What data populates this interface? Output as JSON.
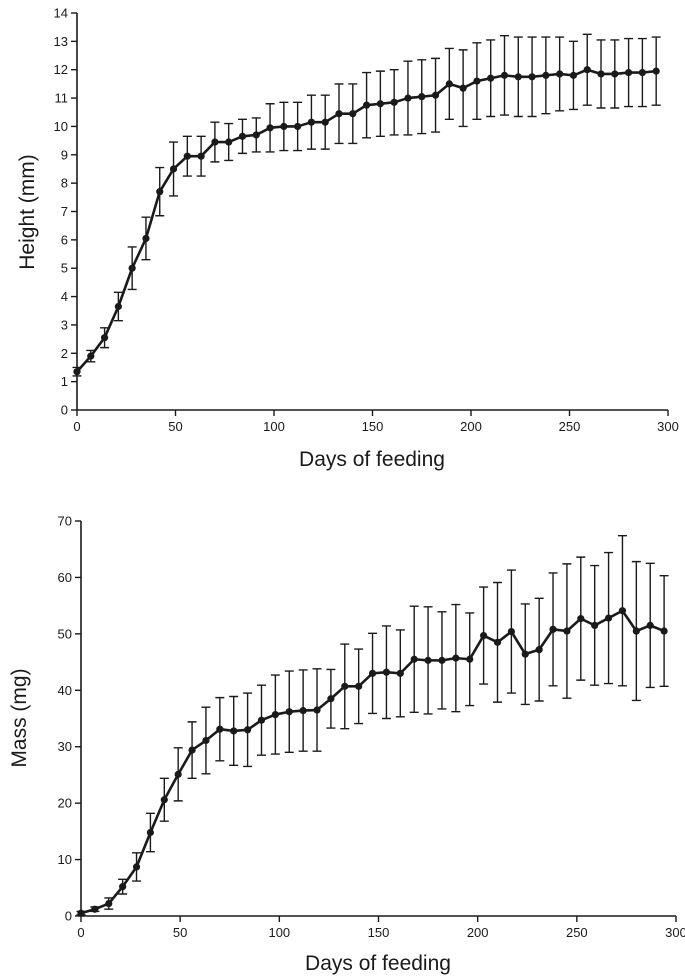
{
  "chart_data": [
    {
      "type": "line",
      "xlabel": "Days of feeding",
      "ylabel": "Height (mm)",
      "xlim": [
        0,
        300
      ],
      "ylim": [
        0,
        14
      ],
      "xticks": [
        0,
        50,
        100,
        150,
        200,
        250,
        300
      ],
      "yticks": [
        0,
        1,
        2,
        3,
        4,
        5,
        6,
        7,
        8,
        9,
        10,
        11,
        12,
        13,
        14
      ],
      "grid": false,
      "error_bars": true,
      "series": [
        {
          "x": [
            0,
            7,
            14,
            21,
            28,
            35,
            42,
            49,
            56,
            63,
            70,
            77,
            84,
            91,
            98,
            105,
            112,
            119,
            126,
            133,
            140,
            147,
            154,
            161,
            168,
            175,
            182,
            189,
            196,
            203,
            210,
            217,
            224,
            231,
            238,
            245,
            252,
            259,
            266,
            273,
            280,
            287,
            294
          ],
          "y": [
            1.35,
            1.9,
            2.55,
            3.65,
            5.0,
            6.05,
            7.7,
            8.5,
            8.95,
            8.95,
            9.45,
            9.45,
            9.65,
            9.7,
            9.95,
            10.0,
            10.0,
            10.15,
            10.15,
            10.45,
            10.45,
            10.75,
            10.8,
            10.85,
            11.0,
            11.05,
            11.1,
            11.5,
            11.35,
            11.6,
            11.7,
            11.8,
            11.75,
            11.75,
            11.8,
            11.85,
            11.8,
            12.0,
            11.85,
            11.85,
            11.9,
            11.9,
            11.95
          ],
          "err": [
            0.15,
            0.2,
            0.35,
            0.5,
            0.75,
            0.75,
            0.85,
            0.95,
            0.7,
            0.7,
            0.7,
            0.65,
            0.6,
            0.6,
            0.85,
            0.85,
            0.85,
            0.95,
            0.95,
            1.05,
            1.05,
            1.15,
            1.15,
            1.15,
            1.3,
            1.3,
            1.3,
            1.25,
            1.35,
            1.35,
            1.35,
            1.4,
            1.4,
            1.4,
            1.35,
            1.3,
            1.2,
            1.25,
            1.2,
            1.2,
            1.2,
            1.2,
            1.2
          ]
        }
      ]
    },
    {
      "type": "line",
      "xlabel": "Days of feeding",
      "ylabel": "Mass (mg)",
      "xlim": [
        0,
        300
      ],
      "ylim": [
        0,
        70
      ],
      "xticks": [
        0,
        50,
        100,
        150,
        200,
        250,
        300
      ],
      "yticks": [
        0,
        10,
        20,
        30,
        40,
        50,
        60,
        70
      ],
      "grid": false,
      "error_bars": true,
      "series": [
        {
          "x": [
            0,
            7,
            14,
            21,
            28,
            35,
            42,
            49,
            56,
            63,
            70,
            77,
            84,
            91,
            98,
            105,
            112,
            119,
            126,
            133,
            140,
            147,
            154,
            161,
            168,
            175,
            182,
            189,
            196,
            203,
            210,
            217,
            224,
            231,
            238,
            245,
            252,
            259,
            266,
            273,
            280,
            287,
            294
          ],
          "y": [
            0.5,
            1.2,
            2.2,
            5.2,
            8.7,
            14.8,
            20.6,
            25.1,
            29.4,
            31.1,
            33.1,
            32.8,
            33.0,
            34.7,
            35.7,
            36.2,
            36.4,
            36.5,
            38.5,
            40.7,
            40.7,
            43.0,
            43.2,
            43.0,
            45.5,
            45.3,
            45.3,
            45.7,
            45.5,
            49.7,
            48.5,
            50.4,
            46.4,
            47.2,
            50.8,
            50.5,
            52.7,
            51.5,
            52.8,
            54.1,
            50.5,
            51.5,
            50.5
          ],
          "err": [
            0.3,
            0.4,
            1.0,
            1.3,
            2.5,
            3.4,
            3.8,
            4.7,
            5.0,
            5.9,
            5.6,
            6.1,
            6.5,
            6.2,
            7.0,
            7.2,
            7.2,
            7.3,
            5.2,
            7.5,
            6.6,
            7.1,
            8.2,
            7.7,
            9.4,
            9.5,
            8.6,
            9.5,
            8.2,
            8.6,
            10.6,
            10.9,
            8.9,
            9.1,
            10.0,
            11.9,
            10.9,
            10.6,
            11.6,
            13.3,
            12.3,
            11.0,
            9.8
          ]
        }
      ]
    }
  ],
  "charts": [
    {
      "xlabel": "Days of feeding",
      "ylabel": "Height (mm)",
      "xtick_labels": [
        "0",
        "50",
        "100",
        "150",
        "200",
        "250",
        "300"
      ],
      "ytick_labels": [
        "0",
        "1",
        "2",
        "3",
        "4",
        "5",
        "6",
        "7",
        "8",
        "9",
        "10",
        "11",
        "12",
        "13",
        "14"
      ]
    },
    {
      "xlabel": "Days of feeding",
      "ylabel": "Mass (mg)",
      "xtick_labels": [
        "0",
        "50",
        "100",
        "150",
        "200",
        "250",
        "300"
      ],
      "ytick_labels": [
        "0",
        "10",
        "20",
        "30",
        "40",
        "50",
        "60",
        "70"
      ]
    }
  ],
  "colors": {
    "line": "#1a1a1a",
    "axis": "#1a1a1a",
    "background": "#ffffff"
  }
}
